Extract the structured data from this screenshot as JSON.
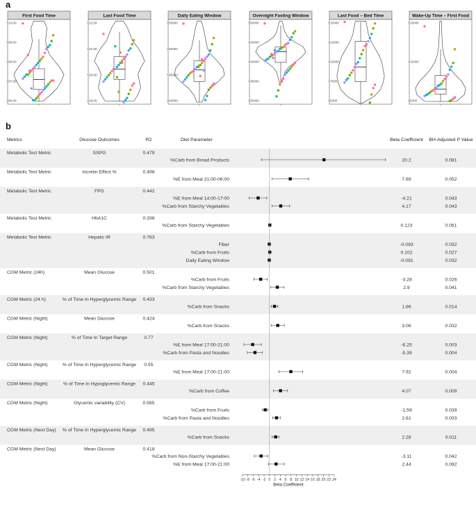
{
  "panel_labels": {
    "a": "a",
    "b": "b"
  },
  "chart_data": [
    {
      "type": "violin",
      "facets": [
        {
          "title": "First Food Time",
          "y_ticks": [
            "06:00",
            "07:00",
            "08:00",
            "09:00",
            "10:00"
          ],
          "range": [
            5.8,
            10.1
          ],
          "box": {
            "q1": 6.55,
            "median": 7.05,
            "q3": 7.6,
            "wlo": 5.95,
            "whi": 9.1
          },
          "widths": [
            0.15,
            0.45,
            0.7,
            0.85,
            0.95,
            0.8,
            0.6,
            0.4,
            0.3,
            0.25,
            0.28,
            0.3,
            0.2
          ]
        },
        {
          "title": "Last Food Time",
          "y_ticks": [
            "19:00",
            "20:00",
            "21:00",
            "22:00"
          ],
          "range": [
            18.9,
            23.0
          ],
          "box": {
            "q1": 20.1,
            "median": 20.6,
            "q3": 21.2,
            "wlo": 19.05,
            "whi": 22.4
          },
          "widths": [
            0.55,
            0.7,
            0.8,
            0.75,
            0.7,
            0.8,
            0.95,
            0.85,
            0.7,
            0.5,
            0.4,
            0.3,
            0.15
          ]
        },
        {
          "title": "Daily Eating Window",
          "y_ticks": [
            "40000",
            "45000",
            "50000",
            "55000"
          ],
          "range": [
            36000,
            56500
          ],
          "box": {
            "q1": 41500,
            "median": 44300,
            "q3": 46500,
            "wlo": 36500,
            "whi": 51500
          },
          "widths": [
            0.1,
            0.2,
            0.4,
            0.7,
            0.95,
            0.9,
            0.7,
            0.45,
            0.3,
            0.25,
            0.2,
            0.15,
            0.08
          ]
        },
        {
          "title": "Overnight Fasting Window",
          "y_ticks": [
            "30000",
            "35000",
            "40000",
            "45000",
            "50000"
          ],
          "range": [
            29500,
            51000
          ],
          "box": {
            "q1": 40100,
            "median": 42800,
            "q3": 44000,
            "wlo": 35000,
            "whi": 49500
          },
          "widths": [
            0.05,
            0.1,
            0.15,
            0.3,
            0.55,
            0.8,
            0.95,
            0.85,
            0.5,
            0.25,
            0.15,
            0.1,
            0.05
          ]
        },
        {
          "title": "Last Food – Bed Time",
          "y_ticks": [
            "5000",
            "7500",
            "10000",
            "12500",
            "15000"
          ],
          "range": [
            4800,
            15300
          ],
          "box": {
            "q1": 7600,
            "median": 9400,
            "q3": 12600,
            "wlo": 4900,
            "whi": 15000
          },
          "widths": [
            0.05,
            0.5,
            0.75,
            0.85,
            0.9,
            0.85,
            0.8,
            0.7,
            0.55,
            0.4,
            0.3,
            0.25,
            0.2
          ]
        },
        {
          "title": "Wake-Up Time – First Food",
          "y_ticks": [
            "5000",
            "10000",
            "15000"
          ],
          "range": [
            0,
            18500
          ],
          "box": {
            "q1": 2200,
            "median": 3300,
            "q3": 6300,
            "wlo": 600,
            "whi": 12000
          },
          "widths": [
            0.6,
            0.9,
            0.95,
            0.8,
            0.55,
            0.35,
            0.2,
            0.12,
            0.08,
            0.06,
            0.05,
            0.04,
            0.03
          ]
        }
      ],
      "points": [
        [
          9.9,
          9.3,
          9.0,
          8.8,
          8.7,
          8.6,
          8.4,
          8.2,
          8.1,
          8.0,
          7.9,
          7.8,
          7.7,
          7.6,
          7.5,
          7.4,
          7.3,
          7.3,
          7.2,
          7.1,
          7.0,
          7.0,
          6.9,
          6.8,
          6.7,
          6.6,
          6.5,
          6.4,
          6.3,
          6.2,
          6.1,
          6.0,
          6.0,
          6.6,
          7.5,
          8.3
        ],
        [
          22.3,
          22.0,
          21.8,
          21.6,
          21.5,
          21.3,
          21.2,
          21.1,
          21.0,
          20.9,
          20.8,
          20.7,
          20.6,
          20.6,
          20.5,
          20.4,
          20.3,
          20.2,
          20.1,
          20.0,
          19.9,
          19.8,
          19.6,
          19.4,
          19.2,
          19.1,
          19.0,
          20.9,
          21.4,
          19.5,
          20.2,
          21.7
        ],
        [
          55500,
          52000,
          50500,
          49000,
          48000,
          47500,
          47000,
          46500,
          46000,
          45500,
          45000,
          45000,
          44500,
          44000,
          43800,
          43500,
          43000,
          42500,
          42000,
          41500,
          41000,
          40500,
          40000,
          39500,
          38000,
          37000,
          44200,
          46800,
          42800,
          45200
        ],
        [
          50000,
          48000,
          47500,
          46500,
          45800,
          45000,
          44800,
          44500,
          44000,
          43800,
          43500,
          43000,
          42800,
          42500,
          42000,
          41800,
          41500,
          41000,
          40800,
          40500,
          40000,
          39500,
          39000,
          38500,
          38000,
          37500,
          37000,
          36000,
          35500,
          34500,
          33000,
          31500,
          43200,
          41200,
          42200
        ],
        [
          15000,
          14800,
          14200,
          13500,
          13000,
          12600,
          12200,
          12000,
          11500,
          11000,
          10500,
          10000,
          9800,
          9400,
          9000,
          8700,
          8400,
          8000,
          7800,
          7500,
          7200,
          6800,
          6000,
          5000
        ],
        [
          17000,
          12000,
          9000,
          8200,
          7500,
          6500,
          6000,
          5500,
          5000,
          4500,
          4200,
          4000,
          3600,
          3300,
          3000,
          2800,
          2500,
          2200,
          2000,
          1800,
          1500,
          1200,
          900,
          700
        ]
      ],
      "colors": [
        "#f8766d",
        "#c49a00",
        "#53b400",
        "#00c094",
        "#00b6eb",
        "#a58aff",
        "#fb61d7"
      ]
    },
    {
      "type": "forest",
      "headers": {
        "metrics": "Metrics",
        "outcome": "Glucose Outcomes",
        "r2": "R2",
        "param": "Diet Parameter",
        "beta": "Beta Coefficient",
        "p": "BH-Adjusted P Value"
      },
      "groups": [
        {
          "metric": "Metabolic Test Metric",
          "outcome": "SSPG",
          "r2": "0.479",
          "rows": [
            {
              "param": "%Carb from Bread Products",
              "beta": 20.2,
              "lo": -3.0,
              "hi": 43.0,
              "beta_text": "20.2",
              "p": "0.081"
            }
          ]
        },
        {
          "metric": "Metabolic Test Metric",
          "outcome": "Incretin Effect %",
          "r2": "0.498",
          "rows": [
            {
              "param": "%E from Meal 21:00-06:00",
              "beta": 7.69,
              "lo": 1.0,
              "hi": 14.5,
              "beta_text": "7.69",
              "p": "0.052"
            }
          ]
        },
        {
          "metric": "Metabolic Test Metric",
          "outcome": "FPG",
          "r2": "0.442",
          "rows": [
            {
              "param": "%E from Meal 14:00-17:00",
              "beta": -4.21,
              "lo": -7.5,
              "hi": -1.0,
              "beta_text": "-4.21",
              "p": "0.043"
            },
            {
              "param": "%Carb from Starchy Vegetables",
              "beta": 4.17,
              "lo": 1.0,
              "hi": 7.5,
              "beta_text": "4.17",
              "p": "0.043"
            }
          ]
        },
        {
          "metric": "Metabolic Test Metric",
          "outcome": "HbA1C",
          "r2": "0.338",
          "rows": [
            {
              "param": "%Carb from Starchy Vegetables",
              "beta": 0.123,
              "lo": -0.2,
              "hi": 0.45,
              "beta_text": "0.123",
              "p": "0.051"
            }
          ]
        },
        {
          "metric": "Metabolic Test Metric",
          "outcome": "Hepatic IR",
          "r2": "0.763",
          "rows": [
            {
              "param": "Fiber",
              "beta": -0.093,
              "lo": -0.4,
              "hi": 0.2,
              "beta_text": "-0.093",
              "p": "0.032"
            },
            {
              "param": "%Carb from Fruits",
              "beta": 0.102,
              "lo": -0.2,
              "hi": 0.4,
              "beta_text": "0.102",
              "p": "0.027"
            },
            {
              "param": "Daily Eating Window",
              "beta": -0.091,
              "lo": -0.4,
              "hi": 0.2,
              "beta_text": "-0.091",
              "p": "0.032"
            }
          ]
        },
        {
          "metric": "CGM Metric (24h)",
          "outcome": "Mean Glucose",
          "r2": "0.501",
          "rows": [
            {
              "param": "%Carb from Fruits",
              "beta": -3.28,
              "lo": -5.8,
              "hi": -0.8,
              "beta_text": "-3.28",
              "p": "0.026"
            },
            {
              "param": "%Carb from Starchy Vegetables",
              "beta": 2.9,
              "lo": 0.5,
              "hi": 5.4,
              "beta_text": "2.9",
              "p": "0.041"
            }
          ]
        },
        {
          "metric": "CGM Metric (24 h)",
          "outcome": "% of Time In Hyperglycemic Range",
          "r2": "0.433",
          "rows": [
            {
              "param": "%Carb from Snacks",
              "beta": 1.86,
              "lo": 0.6,
              "hi": 3.1,
              "beta_text": "1.86",
              "p": "0.014"
            }
          ]
        },
        {
          "metric": "CGM Metric (Night)",
          "outcome": "Mean Glucose",
          "r2": "0.424",
          "rows": [
            {
              "param": "%Carb from Snacks",
              "beta": 3.06,
              "lo": 0.6,
              "hi": 5.5,
              "beta_text": "3.06",
              "p": "0.032"
            }
          ]
        },
        {
          "metric": "CGM Metric (Night)",
          "outcome": "% of Time In Target Range",
          "r2": "0.77",
          "rows": [
            {
              "param": "%E from Meal 17:00-21:00",
              "beta": -6.25,
              "lo": -9.5,
              "hi": -3.0,
              "beta_text": "-6.25",
              "p": "0.003"
            },
            {
              "param": "%Carb from Pasta and Noodles",
              "beta": -5.39,
              "lo": -8.2,
              "hi": -2.6,
              "beta_text": "-5.39",
              "p": "0.004"
            }
          ]
        },
        {
          "metric": "CGM Metric (Night)",
          "outcome": "% of Time In Hyperglycemic Range",
          "r2": "0.55",
          "rows": [
            {
              "param": "%E from Meal 17:00-21:00",
              "beta": 7.92,
              "lo": 3.5,
              "hi": 12.3,
              "beta_text": "7.92",
              "p": "0.004"
            }
          ]
        },
        {
          "metric": "CGM Metric (Night)",
          "outcome": "% of Time In Hypoglycemic Range",
          "r2": "0.445",
          "rows": [
            {
              "param": "%Carb from Coffee",
              "beta": 4.07,
              "lo": 1.5,
              "hi": 6.7,
              "beta_text": "4.07",
              "p": "0.009"
            }
          ]
        },
        {
          "metric": "CGM Metric (Night)",
          "outcome": "Glycemic variability (CV)",
          "r2": "0.585",
          "rows": [
            {
              "param": "%Carb from Fruits",
              "beta": -1.59,
              "lo": -2.6,
              "hi": -0.6,
              "beta_text": "-1.59",
              "p": "0.039"
            },
            {
              "param": "%Carb from Pasta and Noodles",
              "beta": 2.61,
              "lo": 1.2,
              "hi": 4.0,
              "beta_text": "2.61",
              "p": "0.003"
            }
          ]
        },
        {
          "metric": "CGM Metric (Next Day)",
          "outcome": "% of Time In Hyperglycemic Range",
          "r2": "0.495",
          "rows": [
            {
              "param": "%Carb from Snacks",
              "beta": 2.28,
              "lo": 1.0,
              "hi": 3.5,
              "beta_text": "2.28",
              "p": "0.011"
            }
          ]
        },
        {
          "metric": "CGM Metric (Next Day)",
          "outcome": "Mean Glucose",
          "r2": "0.418",
          "rows": [
            {
              "param": "%Carb from Non-Starchy Vegetables",
              "beta": -3.11,
              "lo": -5.6,
              "hi": -0.6,
              "beta_text": "-3.11",
              "p": "0.042"
            },
            {
              "param": "%E from Meal 17:00-21:00",
              "beta": 2.44,
              "lo": -0.3,
              "hi": 5.5,
              "beta_text": "2.44",
              "p": "0.092"
            }
          ]
        }
      ],
      "x_ticks": [
        "-10",
        "-8",
        "-6",
        "-4",
        "-2",
        "0",
        "2",
        "4",
        "6",
        "8",
        "10",
        "12",
        "14",
        "16",
        "18",
        "20",
        "22",
        "24"
      ],
      "xlim": [
        -10,
        24
      ],
      "xlabel": "Beta Coefficient"
    }
  ]
}
